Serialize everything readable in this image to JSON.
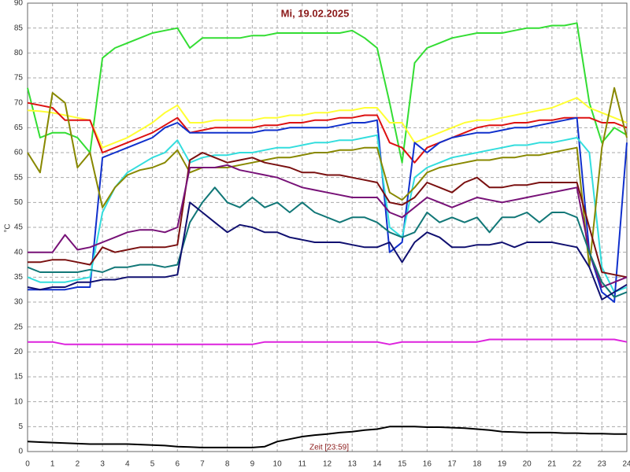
{
  "chart_data": {
    "type": "line",
    "title": "Mi, 19.02.2025",
    "y_label": "°C",
    "x_label": "Zeit [23:59]",
    "xlim": [
      0,
      24
    ],
    "ylim": [
      0,
      90
    ],
    "xticks": [
      0,
      1,
      2,
      3,
      4,
      5,
      6,
      7,
      8,
      9,
      10,
      11,
      12,
      13,
      14,
      15,
      16,
      17,
      18,
      19,
      20,
      21,
      22,
      23,
      24
    ],
    "yticks": [
      0,
      5,
      10,
      15,
      20,
      25,
      30,
      35,
      40,
      45,
      50,
      55,
      60,
      65,
      70,
      75,
      80,
      85,
      90
    ],
    "grid": true,
    "x": [
      0,
      0.5,
      1,
      1.5,
      2,
      2.5,
      3,
      3.5,
      4,
      4.5,
      5,
      5.5,
      6,
      6.5,
      7,
      7.5,
      8,
      8.5,
      9,
      9.5,
      10,
      10.5,
      11,
      11.5,
      12,
      12.5,
      13,
      13.5,
      14,
      14.5,
      15,
      15.5,
      16,
      16.5,
      17,
      17.5,
      18,
      18.5,
      19,
      19.5,
      20,
      20.5,
      21,
      21.5,
      22,
      22.5,
      23,
      23.5,
      24
    ],
    "series": [
      {
        "color": "#33dd33",
        "values": [
          73,
          63,
          64,
          64,
          63,
          60,
          79,
          81,
          82,
          83,
          84,
          84.5,
          85,
          81,
          83,
          83,
          83,
          83,
          83.5,
          83.5,
          84,
          84,
          84,
          84,
          84,
          84,
          84.5,
          83,
          81,
          70,
          58,
          78,
          81,
          82,
          83,
          83.5,
          84,
          84,
          84,
          84.5,
          85,
          85,
          85.5,
          85.5,
          86,
          70,
          62,
          65,
          63.5
        ]
      },
      {
        "color": "#ffff33",
        "values": [
          68.5,
          68.3,
          68,
          67.5,
          67,
          66.5,
          61,
          62,
          63,
          64.5,
          66,
          68,
          69.5,
          66,
          66,
          66.5,
          66.5,
          66.5,
          66.5,
          67,
          67,
          67.5,
          67.5,
          68,
          68,
          68.5,
          68.5,
          69,
          69,
          66,
          66,
          62,
          63,
          64,
          65,
          66,
          66.5,
          66.5,
          67,
          67.5,
          68,
          68.5,
          69,
          70,
          71,
          69,
          68,
          67,
          66
        ]
      },
      {
        "color": "#dd1111",
        "values": [
          70,
          69.5,
          69,
          66.5,
          66.5,
          66.5,
          60,
          61,
          62,
          63,
          64,
          65.5,
          67,
          64,
          64.5,
          65,
          65,
          65,
          65,
          65.5,
          65.5,
          66,
          66,
          66.5,
          66.5,
          67,
          67,
          67.5,
          67.5,
          62,
          61,
          58,
          61,
          62,
          63,
          64,
          65,
          65.5,
          65.5,
          66,
          66,
          66.5,
          66.5,
          67,
          67,
          67,
          66,
          66,
          65
        ]
      },
      {
        "color": "#1030cc",
        "values": [
          32.5,
          32.5,
          32.5,
          32.5,
          33,
          33,
          59,
          60,
          61,
          62,
          63,
          65,
          66,
          64,
          64,
          64,
          64,
          64,
          64,
          64.5,
          64.5,
          65,
          65,
          65,
          65,
          65.5,
          66,
          66,
          66.5,
          40,
          42,
          62,
          60,
          62,
          63,
          63.5,
          64,
          64,
          64.5,
          65,
          65,
          65.5,
          66,
          66.5,
          67,
          40,
          32,
          30,
          62
        ]
      },
      {
        "color": "#33dddd",
        "values": [
          35,
          34,
          34,
          34,
          34.5,
          35,
          48,
          53,
          56,
          57.5,
          59,
          60,
          62.5,
          58,
          59,
          59.5,
          59.5,
          60,
          60,
          60.5,
          61,
          61,
          61.5,
          62,
          62,
          62.5,
          62.5,
          63,
          63.5,
          45,
          43,
          55,
          57,
          58,
          59,
          59.5,
          60,
          60.5,
          61,
          61.5,
          61.5,
          62,
          62,
          62.5,
          63,
          60,
          37,
          32,
          33
        ]
      },
      {
        "color": "#888800",
        "values": [
          60,
          56,
          72,
          70,
          57,
          60,
          49,
          53,
          55.5,
          56.5,
          57,
          58,
          60.5,
          56,
          57,
          57,
          57,
          57.5,
          58,
          58.5,
          59,
          59,
          59.5,
          60,
          60,
          60.5,
          60.5,
          61,
          61,
          52,
          50.5,
          53,
          56,
          57,
          57.5,
          58,
          58.5,
          58.5,
          59,
          59,
          59.5,
          59.5,
          60,
          60.5,
          61,
          37,
          61,
          73,
          63
        ]
      },
      {
        "color": "#7a1010",
        "values": [
          38,
          38,
          38.5,
          38.5,
          38,
          37.5,
          41,
          40,
          40.5,
          41,
          41,
          41,
          41.5,
          58.5,
          60,
          59,
          58,
          58.5,
          59,
          58,
          57.5,
          57,
          56,
          56,
          55.5,
          55.5,
          55,
          54.5,
          54,
          50,
          49.5,
          51,
          54,
          53,
          52,
          54,
          55,
          53,
          53,
          53.5,
          53.5,
          54,
          54,
          54,
          54,
          45,
          36,
          35.5,
          35
        ]
      },
      {
        "color": "#771177",
        "values": [
          40,
          40,
          40,
          43.5,
          40.5,
          41,
          42,
          43,
          44,
          44.5,
          44.5,
          44,
          45,
          57,
          57,
          57,
          57.5,
          56.5,
          56,
          55.5,
          55,
          54,
          53,
          52.5,
          52,
          51.5,
          51,
          51,
          51,
          48,
          47,
          49,
          51,
          50,
          49,
          50,
          51,
          50.5,
          50,
          50.5,
          51,
          51.5,
          52,
          52.5,
          53,
          40,
          33,
          34,
          35
        ]
      },
      {
        "color": "#117777",
        "values": [
          37,
          36,
          36,
          36,
          36,
          36.5,
          36,
          37,
          37,
          37.5,
          37.5,
          37,
          37.5,
          46,
          50,
          53,
          50,
          49,
          51,
          49,
          50,
          48,
          50,
          48,
          47,
          46,
          47,
          47,
          46,
          44,
          43,
          44,
          48,
          46,
          47,
          46,
          47,
          44,
          47,
          47,
          48,
          46,
          48,
          48,
          47,
          40,
          34,
          31,
          32
        ]
      },
      {
        "color": "#101070",
        "values": [
          33,
          32.5,
          33,
          33,
          34,
          34,
          34.5,
          34.5,
          35,
          35,
          35,
          35,
          35.5,
          50,
          48,
          46,
          44,
          45.5,
          45,
          44,
          44,
          43,
          42.5,
          42,
          42,
          42,
          41.5,
          41,
          41,
          42,
          38,
          42,
          44,
          43,
          41,
          41,
          41.5,
          41.5,
          42,
          41,
          42,
          42,
          42,
          41.5,
          41,
          37,
          30.5,
          32,
          33.5
        ]
      },
      {
        "color": "#dd22dd",
        "values": [
          22,
          22,
          22,
          21.5,
          21.5,
          21.5,
          21.5,
          21.5,
          21.5,
          21.5,
          21.5,
          21.5,
          21.5,
          21.5,
          21.5,
          21.5,
          21.5,
          21.5,
          21.5,
          22,
          22,
          22,
          22,
          22,
          22,
          22,
          22,
          22,
          22,
          21.5,
          22,
          22,
          22,
          22,
          22,
          22,
          22,
          22.5,
          22.5,
          22.5,
          22.5,
          22.5,
          22.5,
          22.5,
          22.5,
          22.5,
          22.5,
          22.5,
          22
        ]
      },
      {
        "color": "#000000",
        "values": [
          2,
          1.9,
          1.8,
          1.7,
          1.6,
          1.5,
          1.5,
          1.5,
          1.5,
          1.4,
          1.3,
          1.2,
          1,
          0.9,
          0.8,
          0.8,
          0.8,
          0.8,
          0.8,
          1,
          2,
          2.5,
          3,
          3.3,
          3.5,
          3.8,
          4,
          4.3,
          4.5,
          5,
          5,
          5,
          4.9,
          4.9,
          4.8,
          4.7,
          4.5,
          4.3,
          4,
          3.9,
          3.8,
          3.8,
          3.8,
          3.7,
          3.7,
          3.6,
          3.6,
          3.5,
          3.5
        ]
      }
    ]
  }
}
